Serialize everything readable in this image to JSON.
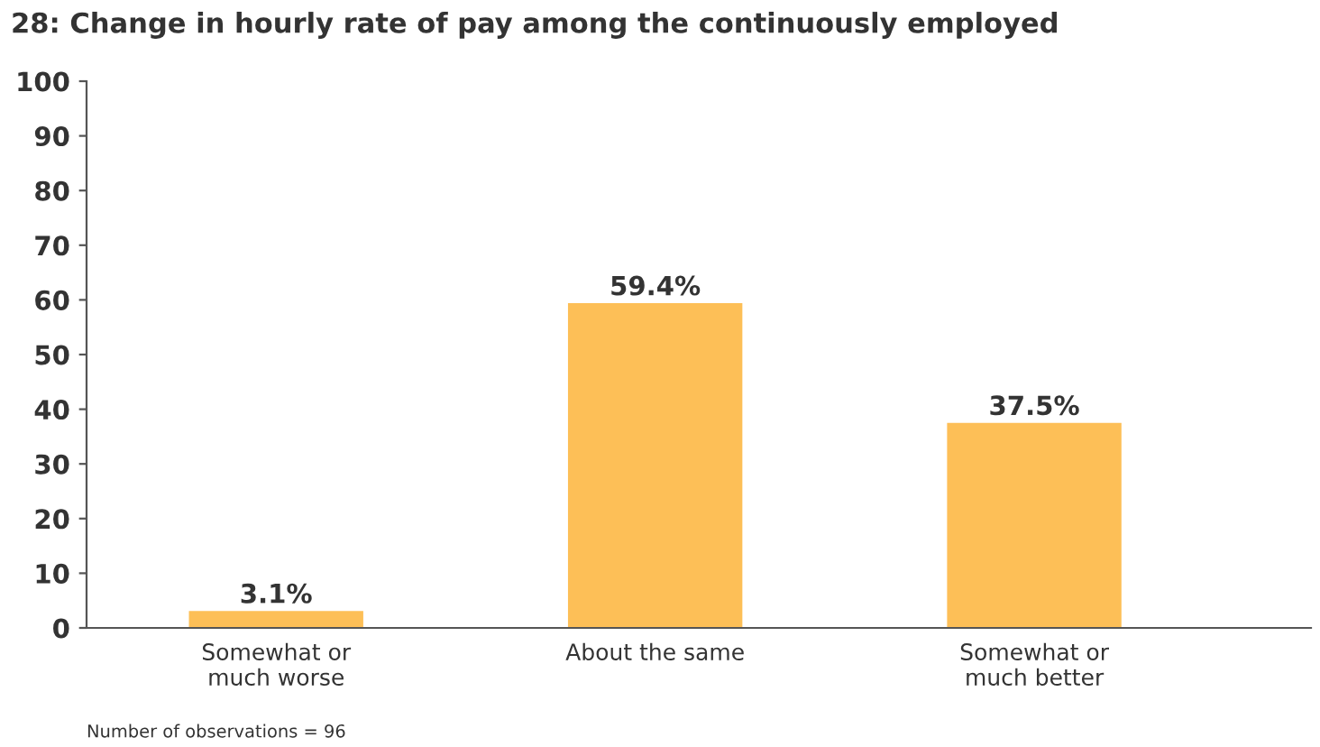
{
  "chart_data": {
    "type": "bar",
    "title": "28: Change in hourly rate of pay among the continuously employed",
    "categories": [
      "Somewhat or\nmuch worse",
      "About the same",
      "Somewhat or\nmuch better"
    ],
    "values": [
      3.1,
      59.4,
      37.5
    ],
    "color": "#fdbf57",
    "value_labels": [
      "3.1%",
      "59.4%",
      "37.5%"
    ],
    "ylim": [
      0,
      100
    ],
    "yticks": [
      0,
      10,
      20,
      30,
      40,
      50,
      60,
      70,
      80,
      90,
      100
    ],
    "grid": false,
    "annotations": [
      "Number of observations = 96"
    ]
  }
}
